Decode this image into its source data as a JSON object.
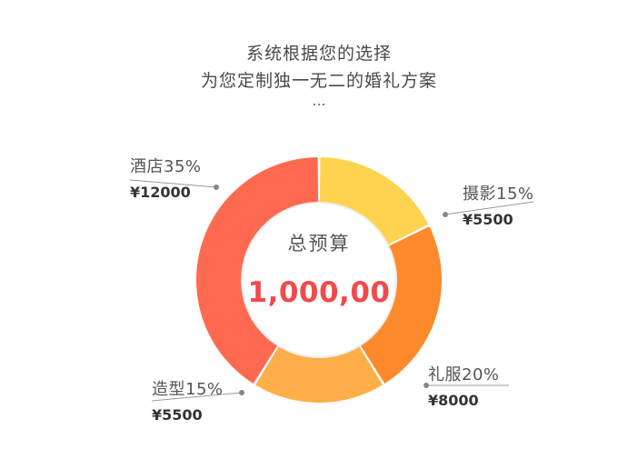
{
  "header": {
    "line1": "系统根据您的选择",
    "line2": "为您定制独一无二的婚礼方案",
    "ellipsis": "..."
  },
  "center": {
    "title": "总预算",
    "total": "1,000,00",
    "total_color": "#f04a4a"
  },
  "chart_data": {
    "type": "pie",
    "style": "donut",
    "total_label": "1,000,00",
    "slices": [
      {
        "label": "酒店35%",
        "name": "酒店",
        "percent": 35,
        "amount": "¥12000",
        "color": "#fe6a50"
      },
      {
        "label": "摄影15%",
        "name": "摄影",
        "percent": 15,
        "amount": "¥5500",
        "color": "#ffd34f"
      },
      {
        "label": "礼服20%",
        "name": "礼服",
        "percent": 20,
        "amount": "¥8000",
        "color": "#fe8a2c"
      },
      {
        "label": "造型15%",
        "name": "造型",
        "percent": 15,
        "amount": "¥5500",
        "color": "#ffae48"
      }
    ]
  }
}
